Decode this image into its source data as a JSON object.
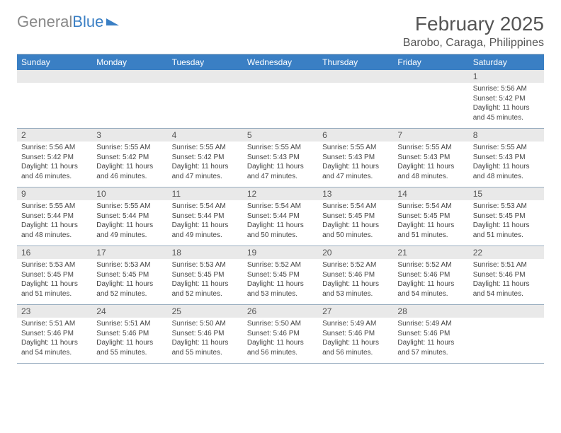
{
  "brand": {
    "general": "General",
    "blue": "Blue"
  },
  "title": "February 2025",
  "location": "Barobo, Caraga, Philippines",
  "colors": {
    "header_bg": "#3a7fc4",
    "header_fg": "#ffffff",
    "grid_border": "#9aaec0",
    "daynum_bg": "#e9e9e9",
    "text": "#444444",
    "page_bg": "#ffffff"
  },
  "typography": {
    "title_fontsize": 28,
    "location_fontsize": 16,
    "dayhead_fontsize": 12,
    "daynum_fontsize": 12,
    "body_fontsize": 10
  },
  "day_labels": [
    "Sunday",
    "Monday",
    "Tuesday",
    "Wednesday",
    "Thursday",
    "Friday",
    "Saturday"
  ],
  "weeks": [
    [
      {
        "n": "",
        "sr": "",
        "ss": "",
        "dl": ""
      },
      {
        "n": "",
        "sr": "",
        "ss": "",
        "dl": ""
      },
      {
        "n": "",
        "sr": "",
        "ss": "",
        "dl": ""
      },
      {
        "n": "",
        "sr": "",
        "ss": "",
        "dl": ""
      },
      {
        "n": "",
        "sr": "",
        "ss": "",
        "dl": ""
      },
      {
        "n": "",
        "sr": "",
        "ss": "",
        "dl": ""
      },
      {
        "n": "1",
        "sr": "Sunrise: 5:56 AM",
        "ss": "Sunset: 5:42 PM",
        "dl": "Daylight: 11 hours and 45 minutes."
      }
    ],
    [
      {
        "n": "2",
        "sr": "Sunrise: 5:56 AM",
        "ss": "Sunset: 5:42 PM",
        "dl": "Daylight: 11 hours and 46 minutes."
      },
      {
        "n": "3",
        "sr": "Sunrise: 5:55 AM",
        "ss": "Sunset: 5:42 PM",
        "dl": "Daylight: 11 hours and 46 minutes."
      },
      {
        "n": "4",
        "sr": "Sunrise: 5:55 AM",
        "ss": "Sunset: 5:42 PM",
        "dl": "Daylight: 11 hours and 47 minutes."
      },
      {
        "n": "5",
        "sr": "Sunrise: 5:55 AM",
        "ss": "Sunset: 5:43 PM",
        "dl": "Daylight: 11 hours and 47 minutes."
      },
      {
        "n": "6",
        "sr": "Sunrise: 5:55 AM",
        "ss": "Sunset: 5:43 PM",
        "dl": "Daylight: 11 hours and 47 minutes."
      },
      {
        "n": "7",
        "sr": "Sunrise: 5:55 AM",
        "ss": "Sunset: 5:43 PM",
        "dl": "Daylight: 11 hours and 48 minutes."
      },
      {
        "n": "8",
        "sr": "Sunrise: 5:55 AM",
        "ss": "Sunset: 5:43 PM",
        "dl": "Daylight: 11 hours and 48 minutes."
      }
    ],
    [
      {
        "n": "9",
        "sr": "Sunrise: 5:55 AM",
        "ss": "Sunset: 5:44 PM",
        "dl": "Daylight: 11 hours and 48 minutes."
      },
      {
        "n": "10",
        "sr": "Sunrise: 5:55 AM",
        "ss": "Sunset: 5:44 PM",
        "dl": "Daylight: 11 hours and 49 minutes."
      },
      {
        "n": "11",
        "sr": "Sunrise: 5:54 AM",
        "ss": "Sunset: 5:44 PM",
        "dl": "Daylight: 11 hours and 49 minutes."
      },
      {
        "n": "12",
        "sr": "Sunrise: 5:54 AM",
        "ss": "Sunset: 5:44 PM",
        "dl": "Daylight: 11 hours and 50 minutes."
      },
      {
        "n": "13",
        "sr": "Sunrise: 5:54 AM",
        "ss": "Sunset: 5:45 PM",
        "dl": "Daylight: 11 hours and 50 minutes."
      },
      {
        "n": "14",
        "sr": "Sunrise: 5:54 AM",
        "ss": "Sunset: 5:45 PM",
        "dl": "Daylight: 11 hours and 51 minutes."
      },
      {
        "n": "15",
        "sr": "Sunrise: 5:53 AM",
        "ss": "Sunset: 5:45 PM",
        "dl": "Daylight: 11 hours and 51 minutes."
      }
    ],
    [
      {
        "n": "16",
        "sr": "Sunrise: 5:53 AM",
        "ss": "Sunset: 5:45 PM",
        "dl": "Daylight: 11 hours and 51 minutes."
      },
      {
        "n": "17",
        "sr": "Sunrise: 5:53 AM",
        "ss": "Sunset: 5:45 PM",
        "dl": "Daylight: 11 hours and 52 minutes."
      },
      {
        "n": "18",
        "sr": "Sunrise: 5:53 AM",
        "ss": "Sunset: 5:45 PM",
        "dl": "Daylight: 11 hours and 52 minutes."
      },
      {
        "n": "19",
        "sr": "Sunrise: 5:52 AM",
        "ss": "Sunset: 5:45 PM",
        "dl": "Daylight: 11 hours and 53 minutes."
      },
      {
        "n": "20",
        "sr": "Sunrise: 5:52 AM",
        "ss": "Sunset: 5:46 PM",
        "dl": "Daylight: 11 hours and 53 minutes."
      },
      {
        "n": "21",
        "sr": "Sunrise: 5:52 AM",
        "ss": "Sunset: 5:46 PM",
        "dl": "Daylight: 11 hours and 54 minutes."
      },
      {
        "n": "22",
        "sr": "Sunrise: 5:51 AM",
        "ss": "Sunset: 5:46 PM",
        "dl": "Daylight: 11 hours and 54 minutes."
      }
    ],
    [
      {
        "n": "23",
        "sr": "Sunrise: 5:51 AM",
        "ss": "Sunset: 5:46 PM",
        "dl": "Daylight: 11 hours and 54 minutes."
      },
      {
        "n": "24",
        "sr": "Sunrise: 5:51 AM",
        "ss": "Sunset: 5:46 PM",
        "dl": "Daylight: 11 hours and 55 minutes."
      },
      {
        "n": "25",
        "sr": "Sunrise: 5:50 AM",
        "ss": "Sunset: 5:46 PM",
        "dl": "Daylight: 11 hours and 55 minutes."
      },
      {
        "n": "26",
        "sr": "Sunrise: 5:50 AM",
        "ss": "Sunset: 5:46 PM",
        "dl": "Daylight: 11 hours and 56 minutes."
      },
      {
        "n": "27",
        "sr": "Sunrise: 5:49 AM",
        "ss": "Sunset: 5:46 PM",
        "dl": "Daylight: 11 hours and 56 minutes."
      },
      {
        "n": "28",
        "sr": "Sunrise: 5:49 AM",
        "ss": "Sunset: 5:46 PM",
        "dl": "Daylight: 11 hours and 57 minutes."
      },
      {
        "n": "",
        "sr": "",
        "ss": "",
        "dl": ""
      }
    ]
  ]
}
